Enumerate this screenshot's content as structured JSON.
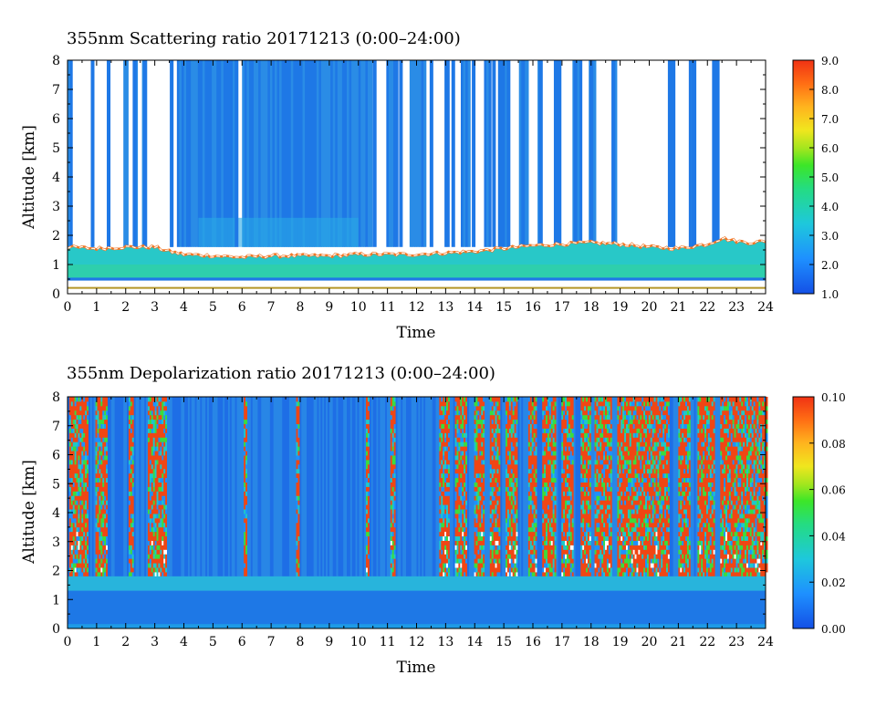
{
  "chart_data": [
    {
      "type": "heatmap",
      "title": "355nm Scattering ratio  20171213 (0:00–24:00)",
      "xlabel": "Time",
      "ylabel": "Altitude [km]",
      "xlim": [
        0,
        24
      ],
      "ylim": [
        0,
        8
      ],
      "xticks": [
        "0",
        "1",
        "2",
        "3",
        "4",
        "5",
        "6",
        "7",
        "8",
        "9",
        "10",
        "11",
        "12",
        "13",
        "14",
        "15",
        "16",
        "17",
        "18",
        "19",
        "20",
        "21",
        "22",
        "23",
        "24"
      ],
      "yticks": [
        "0",
        "1",
        "2",
        "3",
        "4",
        "5",
        "6",
        "7",
        "8"
      ],
      "colorbar": {
        "min": 1.0,
        "max": 9.0,
        "ticks": [
          "1.0",
          "2.0",
          "3.0",
          "4.0",
          "5.0",
          "6.0",
          "7.0",
          "8.0",
          "9.0"
        ]
      },
      "boundary_layer_top_km": [
        [
          0,
          1.6
        ],
        [
          1,
          1.55
        ],
        [
          2,
          1.6
        ],
        [
          3,
          1.6
        ],
        [
          3.5,
          1.45
        ],
        [
          4,
          1.35
        ],
        [
          5,
          1.3
        ],
        [
          6,
          1.25
        ],
        [
          7,
          1.3
        ],
        [
          8,
          1.3
        ],
        [
          9,
          1.3
        ],
        [
          10,
          1.35
        ],
        [
          11,
          1.35
        ],
        [
          12,
          1.35
        ],
        [
          13,
          1.4
        ],
        [
          14,
          1.45
        ],
        [
          15,
          1.55
        ],
        [
          16,
          1.65
        ],
        [
          17,
          1.7
        ],
        [
          18,
          1.75
        ],
        [
          19,
          1.7
        ],
        [
          20,
          1.6
        ],
        [
          21,
          1.55
        ],
        [
          22,
          1.7
        ],
        [
          22.5,
          1.9
        ],
        [
          23,
          1.8
        ],
        [
          23.5,
          1.75
        ],
        [
          24,
          1.8
        ]
      ],
      "data_gap_intervals_h": [
        [
          0.1,
          0.75
        ],
        [
          0.82,
          1.3
        ],
        [
          1.4,
          1.85
        ],
        [
          2.05,
          2.2
        ],
        [
          2.35,
          2.5
        ],
        [
          2.7,
          3.5
        ],
        [
          3.55,
          3.7
        ],
        [
          5.7,
          5.95
        ],
        [
          10.45,
          10.9
        ],
        [
          11.3,
          11.7
        ],
        [
          12.3,
          12.9
        ],
        [
          13.1,
          13.5
        ],
        [
          13.8,
          14.3
        ],
        [
          14.5,
          14.8
        ],
        [
          15.05,
          15.45
        ],
        [
          15.8,
          16.1
        ],
        [
          16.3,
          16.7
        ],
        [
          16.95,
          17.3
        ],
        [
          17.6,
          17.9
        ],
        [
          18.1,
          18.65
        ],
        [
          18.85,
          20.6
        ],
        [
          20.8,
          21.35
        ],
        [
          21.55,
          22.15
        ],
        [
          22.35,
          24.0
        ]
      ]
    },
    {
      "type": "heatmap",
      "title": "355nm Depolarization ratio  20171213 (0:00–24:00)",
      "xlabel": "Time",
      "ylabel": "Altitude [km]",
      "xlim": [
        0,
        24
      ],
      "ylim": [
        0,
        8
      ],
      "xticks": [
        "0",
        "1",
        "2",
        "3",
        "4",
        "5",
        "6",
        "7",
        "8",
        "9",
        "10",
        "11",
        "12",
        "13",
        "14",
        "15",
        "16",
        "17",
        "18",
        "19",
        "20",
        "21",
        "22",
        "23",
        "24"
      ],
      "yticks": [
        "0",
        "1",
        "2",
        "3",
        "4",
        "5",
        "6",
        "7",
        "8"
      ],
      "colorbar": {
        "min": 0.0,
        "max": 0.1,
        "ticks": [
          "0.00",
          "0.02",
          "0.04",
          "0.06",
          "0.08",
          "0.10"
        ]
      },
      "boundary_layer_top_km": 1.5,
      "noisy_high_depol_intervals_h": [
        [
          0.05,
          0.7
        ],
        [
          0.95,
          1.35
        ],
        [
          2.1,
          2.25
        ],
        [
          2.75,
          3.4
        ],
        [
          6.0,
          6.15
        ],
        [
          7.85,
          7.95
        ],
        [
          10.25,
          10.35
        ],
        [
          11.1,
          11.25
        ],
        [
          12.75,
          13.1
        ],
        [
          13.3,
          13.7
        ],
        [
          13.95,
          14.3
        ],
        [
          14.5,
          14.85
        ],
        [
          15.05,
          15.45
        ],
        [
          15.8,
          16.1
        ],
        [
          16.3,
          16.75
        ],
        [
          16.95,
          17.35
        ],
        [
          17.6,
          17.95
        ],
        [
          18.1,
          18.7
        ],
        [
          18.85,
          20.65
        ],
        [
          20.95,
          21.4
        ],
        [
          21.6,
          22.2
        ],
        [
          22.4,
          24.0
        ]
      ]
    }
  ]
}
